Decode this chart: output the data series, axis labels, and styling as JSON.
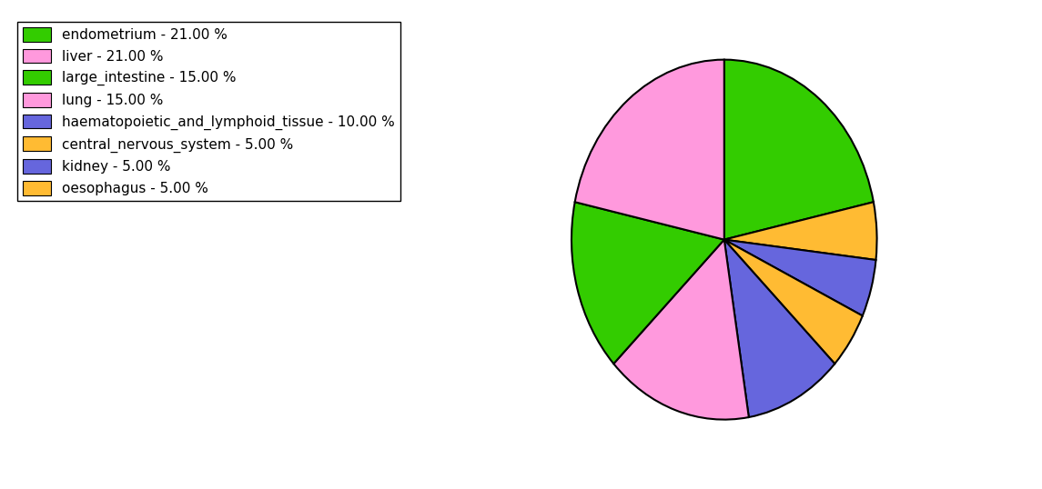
{
  "labels": [
    "endometrium - 21.00 %",
    "central_nervous_system - 5.00 %",
    "kidney - 5.00 %",
    "oesophagus - 5.00 %",
    "haematopoietic_and_lymphoid_tissue - 10.00 %",
    "lung - 15.00 %",
    "large_intestine - 15.00 %",
    "liver - 21.00 %"
  ],
  "values": [
    21,
    5,
    5,
    5,
    10,
    15,
    15,
    21
  ],
  "colors": [
    "#33cc00",
    "#ffbb33",
    "#6666dd",
    "#ffbb33",
    "#6666dd",
    "#ff99dd",
    "#33cc00",
    "#ff99dd"
  ],
  "legend_labels": [
    "endometrium - 21.00 %",
    "liver - 21.00 %",
    "large_intestine - 15.00 %",
    "lung - 15.00 %",
    "haematopoietic_and_lymphoid_tissue - 10.00 %",
    "central_nervous_system - 5.00 %",
    "kidney - 5.00 %",
    "oesophagus - 5.00 %"
  ],
  "legend_colors": [
    "#33cc00",
    "#ff99dd",
    "#33cc00",
    "#ff99dd",
    "#6666dd",
    "#ffbb33",
    "#6666dd",
    "#ffbb33"
  ],
  "startangle": 90,
  "figsize": [
    11.45,
    5.38
  ],
  "dpi": 100
}
